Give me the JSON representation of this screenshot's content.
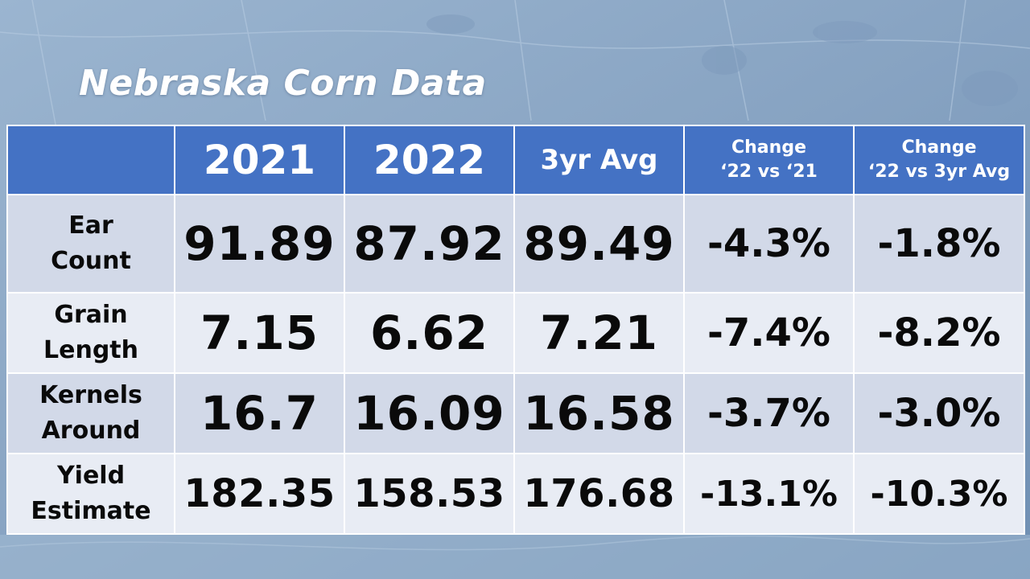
{
  "title": "Nebraska Corn Data",
  "colors": {
    "header_blue": "#4472c4",
    "row_light": "#d2d9e8",
    "row_lighter": "#e8ecf4",
    "background": "#8ea9c6"
  },
  "chart_data": {
    "type": "table",
    "title": "Nebraska Corn Data",
    "columns": [
      "",
      "2021",
      "2022",
      "3yr Avg",
      "Change ‘22 vs ‘21",
      "Change ‘22 vs 3yr Avg"
    ],
    "header": {
      "y2021": "2021",
      "y2022": "2022",
      "avg": "3yr Avg",
      "chg1_line1": "Change",
      "chg1_line2": "‘22 vs ‘21",
      "chg2_line1": "Change",
      "chg2_line2": "‘22 vs 3yr Avg"
    },
    "rows": [
      {
        "label_line1": "Ear",
        "label_line2": "Count",
        "y2021": "91.89",
        "y2022": "87.92",
        "avg": "89.49",
        "chg1": "-4.3%",
        "chg2": "-1.8%"
      },
      {
        "label_line1": "Grain",
        "label_line2": "Length",
        "y2021": "7.15",
        "y2022": "6.62",
        "avg": "7.21",
        "chg1": "-7.4%",
        "chg2": "-8.2%"
      },
      {
        "label_line1": "Kernels",
        "label_line2": "Around",
        "y2021": "16.7",
        "y2022": "16.09",
        "avg": "16.58",
        "chg1": "-3.7%",
        "chg2": "-3.0%"
      },
      {
        "label_line1": "Yield",
        "label_line2": "Estimate",
        "y2021": "182.35",
        "y2022": "158.53",
        "avg": "176.68",
        "chg1": "-13.1%",
        "chg2": "-10.3%"
      }
    ]
  }
}
